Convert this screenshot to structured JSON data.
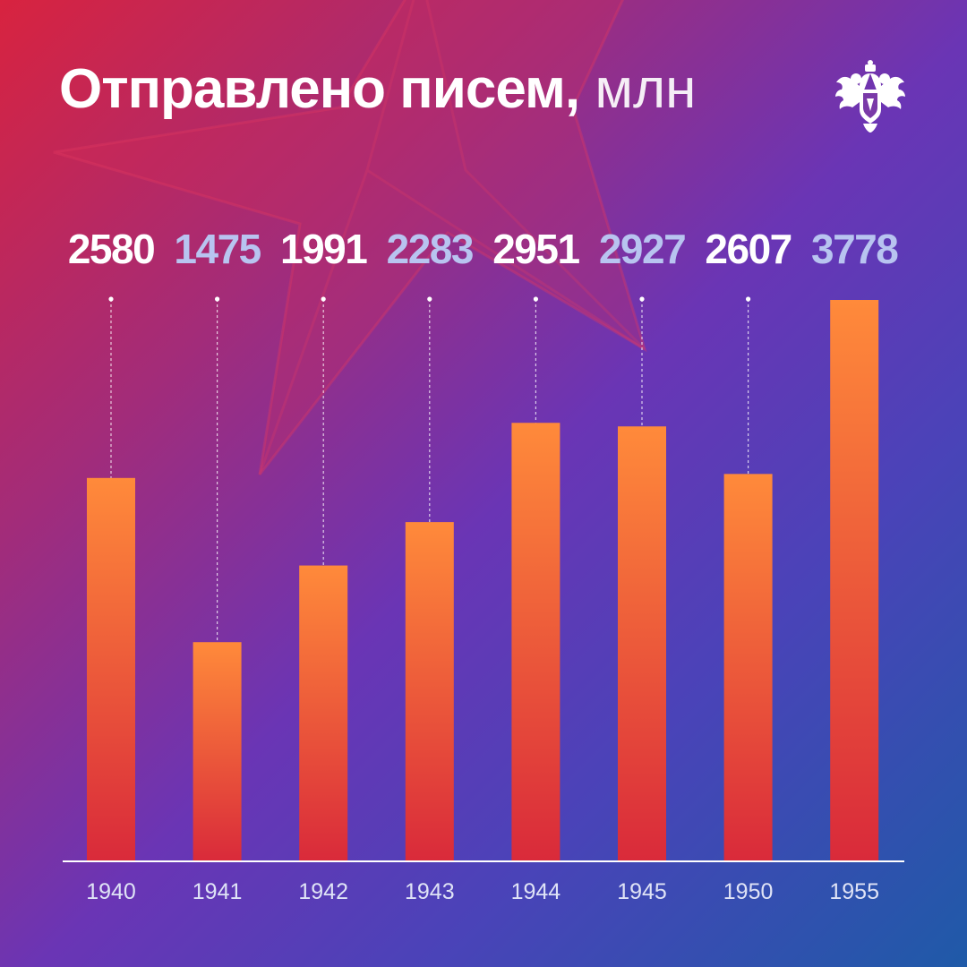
{
  "title": {
    "main": "Отправлено писем,",
    "unit": "млн"
  },
  "logo": {
    "icon": "double-headed-eagle-emblem-icon",
    "color": "#ffffff"
  },
  "colors": {
    "bar_top": "#ff8a3a",
    "bar_bottom": "#d92a3a",
    "value_primary": "#ffffff",
    "value_secondary": "#b8c4f0",
    "axis": "#ffffff"
  },
  "chart_data": {
    "type": "bar",
    "categories": [
      "1940",
      "1941",
      "1942",
      "1943",
      "1944",
      "1945",
      "1950",
      "1955"
    ],
    "values": [
      2580,
      1475,
      1991,
      2283,
      2951,
      2927,
      2607,
      3778
    ],
    "ylim": [
      0,
      3778
    ],
    "grid": false,
    "legend": "none",
    "data_labels": "top, with dotted leader lines"
  }
}
